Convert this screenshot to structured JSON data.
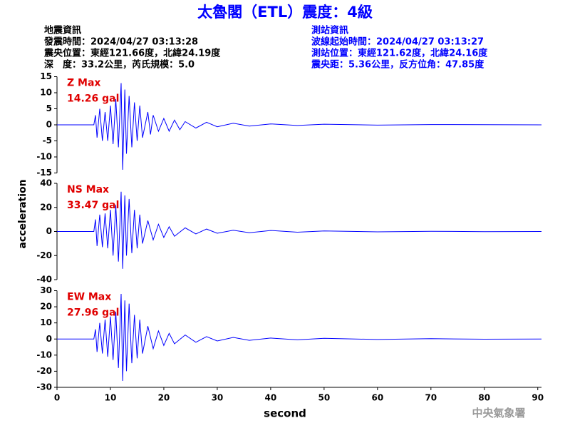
{
  "chart_data": [
    {
      "type": "line",
      "title": "太魯閣（ETL）震度：4級",
      "event_info": [
        "地震資訊",
        "發震時間：2024/04/27 03:13:28",
        "震央位置：東經121.66度，北緯24.19度",
        "深　度：33.2公里，芮氏規模：5.0"
      ],
      "station_info": [
        "測站資訊",
        "波線起始時間：2024/04/27 03:13:27",
        "測站位置：東經121.62度，北緯24.16度",
        "震央距：5.36公里，反方位角：47.85度"
      ],
      "y_label": "acceleration",
      "x_label": "second",
      "footer": "中央氣象署",
      "xlim": [
        0,
        90.7
      ],
      "xticks": [
        0,
        10,
        20,
        30,
        40,
        50,
        60,
        70,
        80,
        90
      ],
      "panels": [
        {
          "max_label": "Z Max",
          "max_value": "14.26 gal",
          "color": "#0000ff",
          "ylim": [
            -15,
            15
          ],
          "yticks": [
            -15,
            -10,
            -5,
            0,
            5,
            10,
            15
          ],
          "x": [
            0,
            6.9,
            7.2,
            7.5,
            8,
            8.5,
            9,
            9.5,
            10,
            10.5,
            11,
            11.5,
            12,
            12.3,
            12.7,
            13,
            13.5,
            14,
            14.5,
            15,
            15.5,
            16,
            17,
            17.5,
            18,
            19,
            20,
            21,
            22,
            23,
            24,
            26,
            28,
            30,
            33,
            36,
            40,
            45,
            50,
            60,
            70,
            90.7
          ],
          "values": [
            0,
            0,
            3,
            -4,
            5,
            -5,
            4,
            -5,
            6,
            -6,
            8,
            -7,
            13,
            -14,
            11,
            -9,
            9,
            -7,
            7,
            -5,
            6,
            -4,
            4,
            -3,
            3,
            -2,
            2,
            -2,
            1.5,
            -1.5,
            1,
            -1,
            0.8,
            -0.6,
            0.5,
            -0.4,
            0.3,
            -0.2,
            0.2,
            -0.1,
            0.1,
            0
          ]
        },
        {
          "max_label": "NS Max",
          "max_value": "33.47 gal",
          "color": "#0000ff",
          "ylim": [
            -40,
            40
          ],
          "yticks": [
            -40,
            -20,
            0,
            20,
            40
          ],
          "x": [
            0,
            6.9,
            7.2,
            7.5,
            8,
            8.5,
            9,
            9.5,
            10,
            10.5,
            11,
            11.5,
            12,
            12.3,
            12.7,
            13,
            13.5,
            14,
            14.5,
            15,
            15.5,
            16,
            17,
            18,
            19,
            20,
            21,
            22,
            24,
            26,
            28,
            30,
            33,
            36,
            40,
            45,
            50,
            60,
            70,
            80,
            90.7
          ],
          "values": [
            0,
            0,
            10,
            -12,
            14,
            -13,
            15,
            -14,
            18,
            -20,
            22,
            -25,
            33,
            -31,
            30,
            -20,
            27,
            -18,
            18,
            -14,
            14,
            -10,
            9,
            -7,
            6,
            -5,
            4,
            -4,
            3,
            -2,
            2,
            -1.5,
            1,
            -1,
            0.8,
            -0.6,
            0.4,
            -0.3,
            0.2,
            -0.1,
            0
          ]
        },
        {
          "max_label": "EW Max",
          "max_value": "27.96 gal",
          "color": "#0000ff",
          "ylim": [
            -30,
            30
          ],
          "yticks": [
            -30,
            -20,
            -10,
            0,
            10,
            20,
            30
          ],
          "x": [
            0,
            6.9,
            7.2,
            7.5,
            8,
            8.5,
            9,
            9.5,
            10,
            10.5,
            11,
            11.5,
            12,
            12.3,
            12.7,
            13,
            13.5,
            14,
            14.5,
            15,
            15.5,
            16,
            17,
            18,
            19,
            20,
            21,
            22,
            24,
            26,
            28,
            30,
            33,
            36,
            40,
            45,
            50,
            60,
            70,
            80,
            90.7
          ],
          "values": [
            0,
            0,
            6,
            -8,
            10,
            -9,
            12,
            -11,
            14,
            -13,
            17,
            -18,
            28,
            -26,
            24,
            -20,
            22,
            -15,
            15,
            -12,
            12,
            -9,
            8,
            -6,
            5,
            -4,
            3.5,
            -3,
            2.5,
            -2,
            1.5,
            -1.2,
            1,
            -0.8,
            0.6,
            -0.5,
            0.4,
            -0.3,
            0.2,
            -0.1,
            0
          ]
        }
      ]
    }
  ]
}
